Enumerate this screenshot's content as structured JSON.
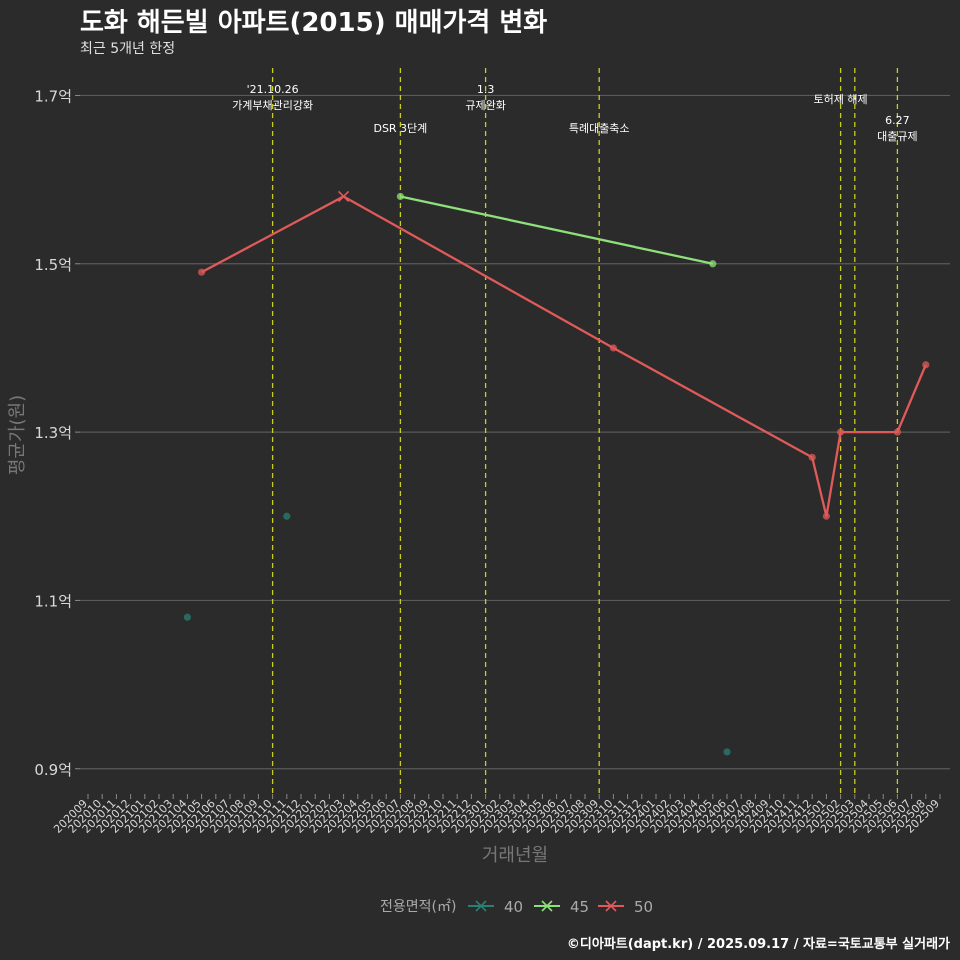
{
  "chart_data": {
    "type": "line",
    "title": "도화 해든빌 아파트(2015) 매매가격 변화",
    "subtitle": "최근 5개년 한정",
    "xlabel": "거래년월",
    "ylabel": "평균가(원)",
    "caption": "©디아파트(dapt.kr) / 2025.09.17 / 자료=국토교통부 실거래가",
    "legend_title": "전용면적(㎡)",
    "legend_position": "bottom",
    "ylim": [
      0.87,
      1.735
    ],
    "y_ticks": [
      0.9,
      1.1,
      1.3,
      1.5,
      1.7
    ],
    "y_tick_labels": [
      "0.9억",
      "1.1억",
      "1.3억",
      "1.5억",
      "1.7억"
    ],
    "categories": [
      "202009",
      "202010",
      "202011",
      "202012",
      "202101",
      "202102",
      "202103",
      "202104",
      "202105",
      "202106",
      "202107",
      "202108",
      "202109",
      "202110",
      "202111",
      "202112",
      "202201",
      "202202",
      "202203",
      "202204",
      "202205",
      "202206",
      "202207",
      "202208",
      "202209",
      "202210",
      "202211",
      "202212",
      "202301",
      "202302",
      "202303",
      "202304",
      "202305",
      "202306",
      "202307",
      "202308",
      "202309",
      "202310",
      "202311",
      "202312",
      "202401",
      "202402",
      "202403",
      "202404",
      "202405",
      "202406",
      "202407",
      "202408",
      "202409",
      "202410",
      "202411",
      "202412",
      "202501",
      "202502",
      "202503",
      "202504",
      "202505",
      "202506",
      "202507",
      "202508",
      "202509"
    ],
    "series": [
      {
        "name": "40",
        "color": "#2a7f73",
        "show_line": false,
        "points": [
          {
            "x": "202104",
            "y": 1.08
          },
          {
            "x": "202111",
            "y": 1.2
          },
          {
            "x": "202406",
            "y": 0.92
          }
        ]
      },
      {
        "name": "45",
        "color": "#8ee07a",
        "show_line": true,
        "points": [
          {
            "x": "202207",
            "y": 1.58
          },
          {
            "x": "202405",
            "y": 1.5
          }
        ]
      },
      {
        "name": "50",
        "color": "#e05a5a",
        "show_line": true,
        "points": [
          {
            "x": "202105",
            "y": 1.49
          },
          {
            "x": "202203",
            "y": 1.58
          },
          {
            "x": "202310",
            "y": 1.4
          },
          {
            "x": "202412",
            "y": 1.27
          },
          {
            "x": "202501",
            "y": 1.2
          },
          {
            "x": "202502",
            "y": 1.3
          },
          {
            "x": "202506",
            "y": 1.3
          },
          {
            "x": "202508",
            "y": 1.38
          }
        ]
      }
    ],
    "annotations": [
      {
        "x": "202110",
        "lines": [
          "'21.10.26",
          "가계부채관리강화"
        ],
        "row": 0
      },
      {
        "x": "202207",
        "lines": [
          "DSR 3단계"
        ],
        "row": 1
      },
      {
        "x": "202301",
        "lines": [
          "1.3",
          "규제완화"
        ],
        "row": 0
      },
      {
        "x": "202309",
        "lines": [
          "특례대출축소"
        ],
        "row": 1
      },
      {
        "x": "202502",
        "lines": [
          "토허제 해제"
        ],
        "row": 0
      },
      {
        "x": "202503",
        "lines": [],
        "row": 0
      },
      {
        "x": "202506",
        "lines": [
          "6.27",
          "대출규제"
        ],
        "row": 2
      }
    ],
    "x_marker": {
      "x": "202203",
      "series": "50",
      "shape": "cross"
    }
  }
}
